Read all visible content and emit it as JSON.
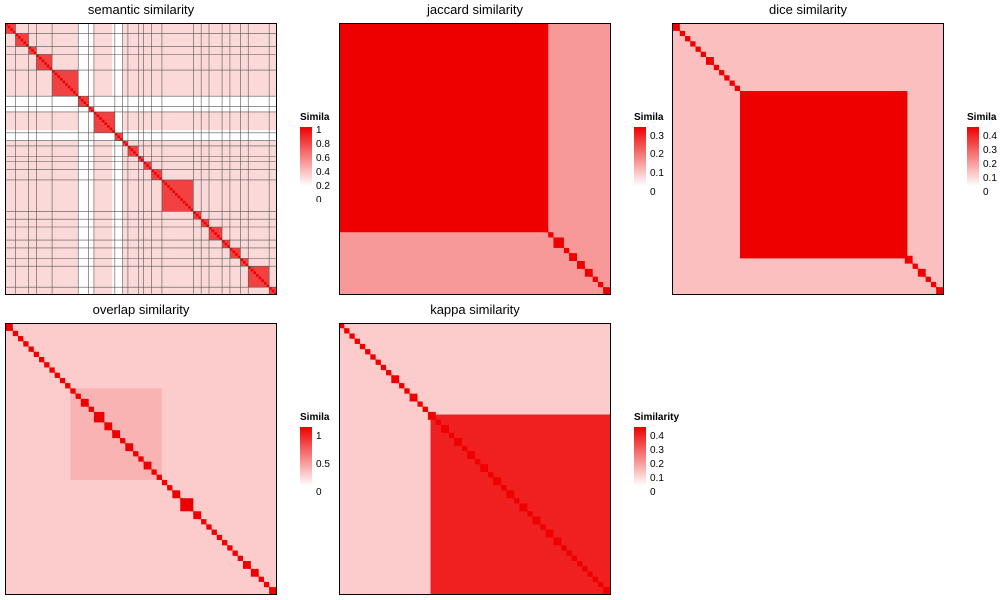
{
  "chart_data": [
    {
      "type": "heatmap",
      "title": "semantic similarity",
      "color_low": "#ffffff",
      "color_high": "#ee0000",
      "legend": {
        "title": "Similarity",
        "ticks": [
          "1",
          "0.8",
          "0.6",
          "0.4",
          "0.2",
          "0"
        ],
        "range": [
          0,
          1
        ]
      },
      "n_terms": 104,
      "diagonal_blocks": [
        [
          0,
          4
        ],
        [
          4,
          5
        ],
        [
          9,
          3
        ],
        [
          12,
          6
        ],
        [
          18,
          10
        ],
        [
          28,
          4
        ],
        [
          32,
          2
        ],
        [
          34,
          8
        ],
        [
          42,
          3
        ],
        [
          45,
          2
        ],
        [
          47,
          4
        ],
        [
          51,
          2
        ],
        [
          53,
          3
        ],
        [
          56,
          4
        ],
        [
          60,
          12
        ],
        [
          72,
          3
        ],
        [
          75,
          3
        ],
        [
          78,
          5
        ],
        [
          83,
          3
        ],
        [
          86,
          4
        ],
        [
          90,
          3
        ],
        [
          93,
          8
        ],
        [
          101,
          3
        ]
      ],
      "empty_terms": [
        28,
        29,
        30,
        31,
        32,
        33,
        41,
        42,
        43,
        44
      ],
      "background": 0.15,
      "block_value": 0.7,
      "grid_lines": true
    },
    {
      "type": "heatmap",
      "title": "jaccard similarity",
      "color_low": "#ffffff",
      "color_high": "#ee0000",
      "legend": {
        "title": "Similarity",
        "ticks": [
          "0.3",
          "0.2",
          "0.1",
          "0"
        ],
        "range": [
          0,
          0.3
        ]
      },
      "n_terms": 104,
      "diagonal_blocks": [
        [
          0,
          3
        ],
        [
          3,
          4
        ],
        [
          7,
          2
        ],
        [
          9,
          3
        ],
        [
          12,
          2
        ],
        [
          14,
          2
        ],
        [
          16,
          3
        ],
        [
          19,
          2
        ],
        [
          21,
          3
        ],
        [
          24,
          2
        ],
        [
          26,
          3
        ],
        [
          29,
          2
        ],
        [
          31,
          2
        ],
        [
          33,
          2
        ],
        [
          35,
          3
        ],
        [
          38,
          2
        ],
        [
          40,
          2
        ],
        [
          42,
          3
        ],
        [
          45,
          4
        ],
        [
          49,
          2
        ],
        [
          51,
          3
        ],
        [
          54,
          4
        ],
        [
          58,
          2
        ],
        [
          60,
          3
        ],
        [
          63,
          2
        ],
        [
          65,
          3
        ],
        [
          68,
          2
        ],
        [
          70,
          3
        ],
        [
          73,
          2
        ],
        [
          75,
          3
        ],
        [
          78,
          2
        ],
        [
          80,
          2
        ],
        [
          82,
          4
        ],
        [
          86,
          2
        ],
        [
          88,
          3
        ],
        [
          91,
          3
        ],
        [
          94,
          3
        ],
        [
          97,
          2
        ],
        [
          99,
          2
        ],
        [
          101,
          3
        ]
      ],
      "cluster": [
        0,
        80
      ],
      "background": 0.12,
      "cluster_value": 0.35,
      "grid_lines": false
    },
    {
      "type": "heatmap",
      "title": "dice similarity",
      "color_low": "#ffffff",
      "color_high": "#ee0000",
      "legend": {
        "title": "Similarity",
        "ticks": [
          "0.4",
          "0.3",
          "0.2",
          "0.1",
          "0"
        ],
        "range": [
          0,
          0.4
        ]
      },
      "n_terms": 104,
      "diagonal_blocks": [
        [
          0,
          3
        ],
        [
          3,
          2
        ],
        [
          5,
          2
        ],
        [
          7,
          2
        ],
        [
          9,
          2
        ],
        [
          11,
          2
        ],
        [
          13,
          3
        ],
        [
          16,
          2
        ],
        [
          18,
          2
        ],
        [
          20,
          2
        ],
        [
          22,
          2
        ],
        [
          24,
          2
        ],
        [
          26,
          3
        ],
        [
          29,
          2
        ],
        [
          31,
          3
        ],
        [
          34,
          2
        ],
        [
          36,
          4
        ],
        [
          40,
          2
        ],
        [
          42,
          3
        ],
        [
          45,
          4
        ],
        [
          49,
          2
        ],
        [
          51,
          3
        ],
        [
          54,
          3
        ],
        [
          57,
          2
        ],
        [
          59,
          3
        ],
        [
          62,
          2
        ],
        [
          64,
          3
        ],
        [
          67,
          2
        ],
        [
          69,
          3
        ],
        [
          72,
          2
        ],
        [
          74,
          3
        ],
        [
          77,
          2
        ],
        [
          79,
          3
        ],
        [
          82,
          2
        ],
        [
          84,
          3
        ],
        [
          87,
          2
        ],
        [
          89,
          3
        ],
        [
          92,
          2
        ],
        [
          94,
          3
        ],
        [
          97,
          2
        ],
        [
          99,
          2
        ],
        [
          101,
          3
        ]
      ],
      "cluster": [
        26,
        90
      ],
      "background": 0.1,
      "cluster_value": 0.4,
      "grid_lines": false
    },
    {
      "type": "heatmap",
      "title": "overlap similarity",
      "color_low": "#ffffff",
      "color_high": "#ee0000",
      "legend": {
        "title": "Similarity",
        "ticks": [
          "1",
          "0.5",
          "0"
        ],
        "range": [
          0,
          1
        ]
      },
      "n_terms": 104,
      "diagonal_blocks": [
        [
          0,
          3
        ],
        [
          3,
          2
        ],
        [
          5,
          2
        ],
        [
          7,
          2
        ],
        [
          9,
          2
        ],
        [
          11,
          2
        ],
        [
          13,
          2
        ],
        [
          15,
          2
        ],
        [
          17,
          2
        ],
        [
          19,
          2
        ],
        [
          21,
          2
        ],
        [
          23,
          2
        ],
        [
          25,
          2
        ],
        [
          27,
          2
        ],
        [
          29,
          3
        ],
        [
          32,
          2
        ],
        [
          34,
          4
        ],
        [
          38,
          3
        ],
        [
          41,
          3
        ],
        [
          44,
          2
        ],
        [
          46,
          3
        ],
        [
          49,
          2
        ],
        [
          51,
          2
        ],
        [
          53,
          3
        ],
        [
          56,
          2
        ],
        [
          58,
          2
        ],
        [
          60,
          2
        ],
        [
          62,
          2
        ],
        [
          64,
          3
        ],
        [
          67,
          5
        ],
        [
          72,
          3
        ],
        [
          75,
          2
        ],
        [
          77,
          2
        ],
        [
          79,
          2
        ],
        [
          81,
          2
        ],
        [
          83,
          2
        ],
        [
          85,
          2
        ],
        [
          87,
          2
        ],
        [
          89,
          2
        ],
        [
          91,
          3
        ],
        [
          94,
          3
        ],
        [
          97,
          2
        ],
        [
          99,
          2
        ],
        [
          101,
          3
        ]
      ],
      "cluster": [
        25,
        60
      ],
      "background": 0.2,
      "cluster_value": 0.3,
      "grid_lines": false
    },
    {
      "type": "heatmap",
      "title": "kappa similarity",
      "color_low": "#ffffff",
      "color_high": "#ee0000",
      "legend": {
        "title": "Similarity",
        "ticks": [
          "0.4",
          "0.3",
          "0.2",
          "0.1",
          "0"
        ],
        "range": [
          0,
          0.4
        ]
      },
      "n_terms": 104,
      "diagonal_blocks": [
        [
          0,
          2
        ],
        [
          2,
          2
        ],
        [
          4,
          2
        ],
        [
          6,
          2
        ],
        [
          8,
          2
        ],
        [
          10,
          2
        ],
        [
          12,
          2
        ],
        [
          14,
          2
        ],
        [
          16,
          2
        ],
        [
          18,
          2
        ],
        [
          20,
          3
        ],
        [
          23,
          2
        ],
        [
          25,
          2
        ],
        [
          27,
          3
        ],
        [
          30,
          2
        ],
        [
          32,
          2
        ],
        [
          34,
          3
        ],
        [
          37,
          2
        ],
        [
          39,
          3
        ],
        [
          42,
          2
        ],
        [
          44,
          3
        ],
        [
          47,
          2
        ],
        [
          49,
          3
        ],
        [
          52,
          2
        ],
        [
          54,
          3
        ],
        [
          57,
          2
        ],
        [
          59,
          3
        ],
        [
          62,
          2
        ],
        [
          64,
          3
        ],
        [
          67,
          2
        ],
        [
          69,
          3
        ],
        [
          72,
          2
        ],
        [
          74,
          3
        ],
        [
          77,
          2
        ],
        [
          79,
          3
        ],
        [
          82,
          3
        ],
        [
          85,
          2
        ],
        [
          87,
          2
        ],
        [
          89,
          2
        ],
        [
          91,
          2
        ],
        [
          93,
          2
        ],
        [
          95,
          2
        ],
        [
          97,
          2
        ],
        [
          99,
          2
        ],
        [
          101,
          3
        ]
      ],
      "cluster": [
        35,
        104
      ],
      "background": 0.08,
      "cluster_value": 0.35,
      "grid_lines": false
    }
  ]
}
